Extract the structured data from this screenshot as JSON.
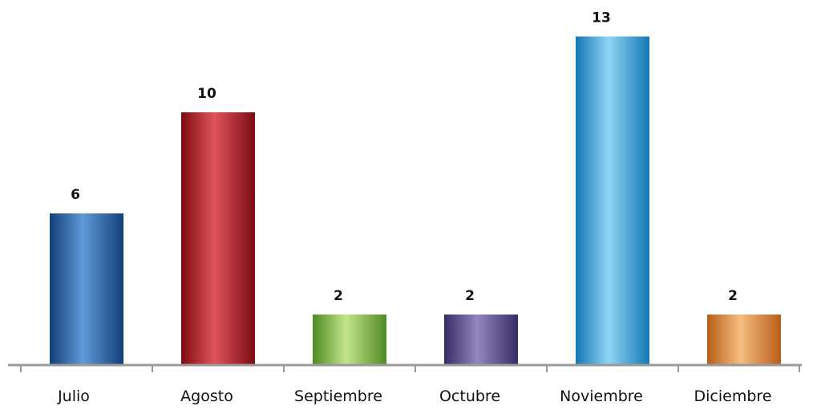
{
  "chart_data": {
    "type": "bar",
    "title": "",
    "xlabel": "",
    "ylabel": "",
    "categories": [
      "Julio",
      "Agosto",
      "Septiembre",
      "Octubre",
      "Noviembre",
      "Diciembre"
    ],
    "values": [
      6,
      10,
      2,
      2,
      13,
      2
    ],
    "value_labels": [
      "6",
      "10",
      "2",
      "2",
      "13",
      "2"
    ],
    "ylim": [
      0,
      13.5
    ],
    "grid": false,
    "legend": "none",
    "colors": [
      {
        "base": "#1f5fa8",
        "light": "#5f9ad8",
        "dark": "#123f78"
      },
      {
        "base": "#c0141f",
        "light": "#e0535b",
        "dark": "#7e0a12"
      },
      {
        "base": "#7fbf3f",
        "light": "#c4e58a",
        "dark": "#4f8a22"
      },
      {
        "base": "#5a4b8c",
        "light": "#9487c0",
        "dark": "#372b63"
      },
      {
        "base": "#2aa6e3",
        "light": "#8fd4f5",
        "dark": "#1478b5"
      },
      {
        "base": "#e8893a",
        "light": "#f6bd80",
        "dark": "#b85d17"
      }
    ],
    "axis_color": "#9a9a9a"
  }
}
